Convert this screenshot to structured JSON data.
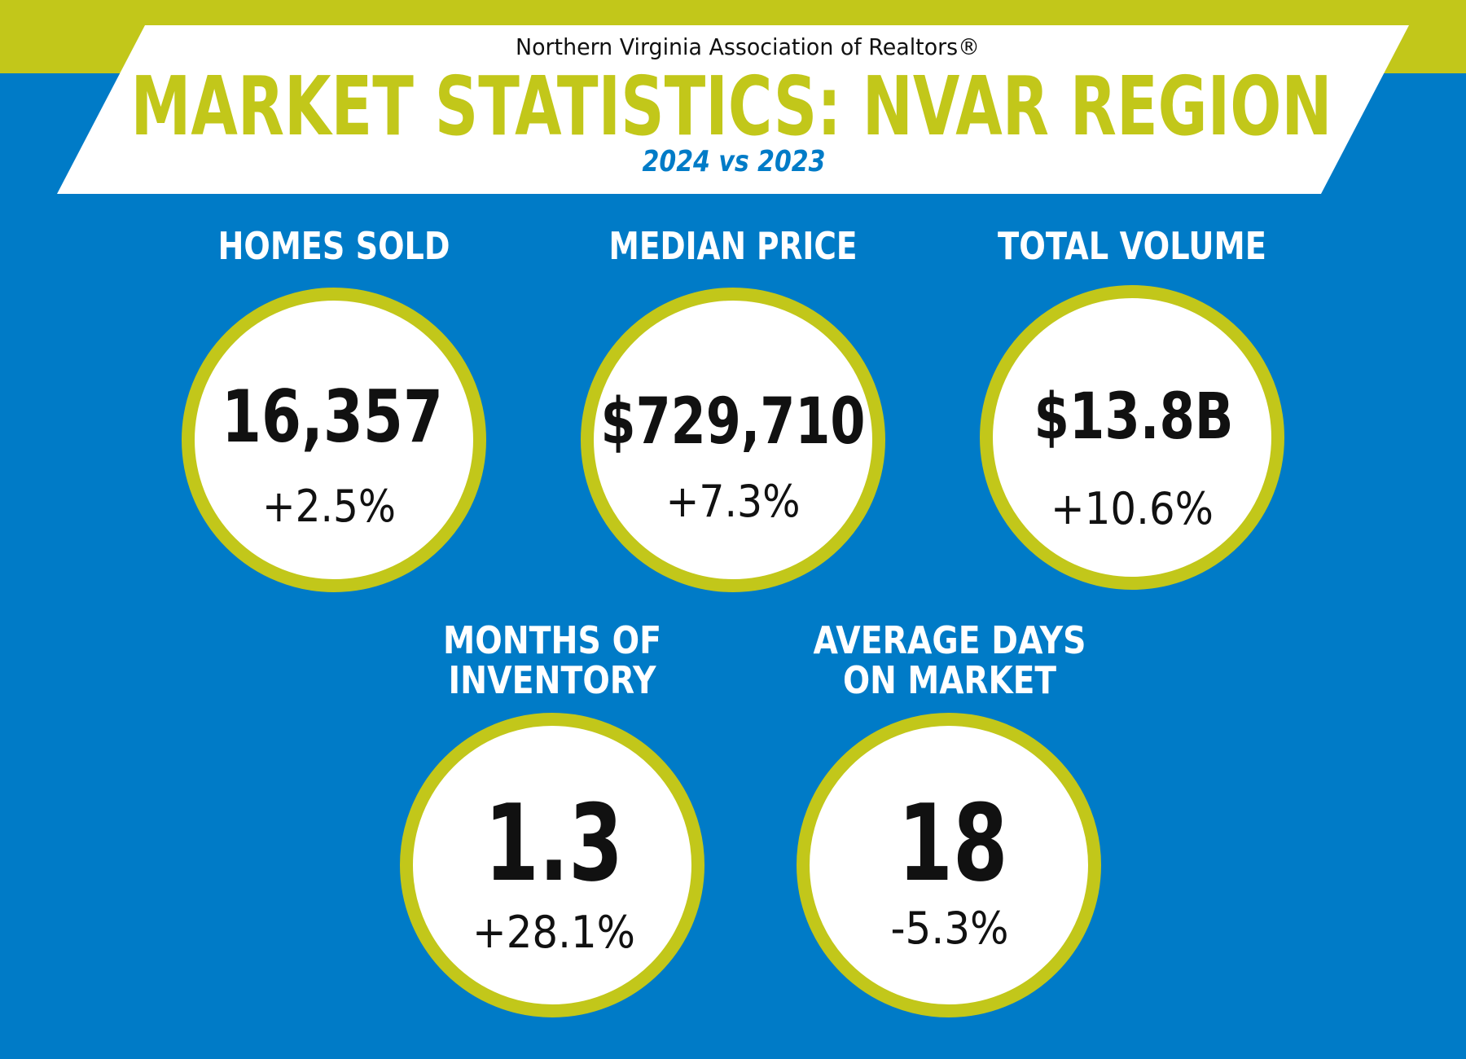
{
  "header": {
    "organization": "Northern Virginia Association of Realtors®",
    "title": "MARKET STATISTICS: NVAR REGION",
    "comparison": "2024 vs 2023"
  },
  "colors": {
    "background": "#007bc7",
    "accent": "#c2c71a",
    "panel": "#ffffff",
    "text": "#111111"
  },
  "stats": [
    {
      "label": [
        "HOMES SOLD"
      ],
      "value": "16,357",
      "change": "+2.5%"
    },
    {
      "label": [
        "MEDIAN PRICE"
      ],
      "value": "$729,710",
      "change": "+7.3%"
    },
    {
      "label": [
        "TOTAL VOLUME"
      ],
      "value": "$13.8B",
      "change": "+10.6%"
    },
    {
      "label": [
        "MONTHS OF",
        "INVENTORY"
      ],
      "value": "1.3",
      "change": "+28.1%"
    },
    {
      "label": [
        "AVERAGE DAYS",
        "ON MARKET"
      ],
      "value": "18",
      "change": "-5.3%"
    }
  ]
}
